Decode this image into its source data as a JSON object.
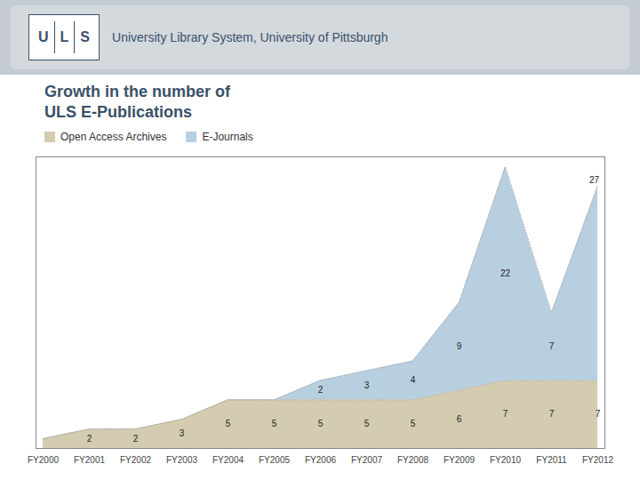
{
  "chart_data": {
    "type": "area",
    "stacked": true,
    "title": "Growth in the number of\nULS E-Publications",
    "header": "University Library System, University of Pittsburgh",
    "logo": "ULS",
    "categories": [
      "FY2000",
      "FY2001",
      "FY2002",
      "FY2003",
      "FY2004",
      "FY2005",
      "FY2006",
      "FY2007",
      "FY2008",
      "FY2009",
      "FY2010",
      "FY2011",
      "FY2012"
    ],
    "series": [
      {
        "name": "Open Access Archives",
        "color": "#d4ccb0",
        "values": [
          1,
          2,
          2,
          3,
          5,
          5,
          5,
          5,
          5,
          6,
          7,
          7,
          7
        ],
        "value_labels": [
          null,
          "2",
          "2",
          "3",
          "5",
          "5",
          "5",
          "5",
          "5",
          "6",
          "7",
          "7",
          "7"
        ]
      },
      {
        "name": "E-Journals",
        "color": "#b8cfe0",
        "values": [
          0,
          0,
          0,
          0,
          0,
          0,
          2,
          3,
          4,
          9,
          22,
          7,
          20
        ],
        "value_labels": [
          null,
          null,
          null,
          null,
          null,
          null,
          "2",
          "3",
          "4",
          "9",
          "22",
          "7",
          null
        ]
      }
    ],
    "annotations": [
      {
        "text": "27",
        "x": "FY2012",
        "y": 27
      }
    ],
    "ylim": [
      0,
      30
    ],
    "tick_labels": "x",
    "data_labels": true,
    "legend": "upper left",
    "grid": false
  }
}
